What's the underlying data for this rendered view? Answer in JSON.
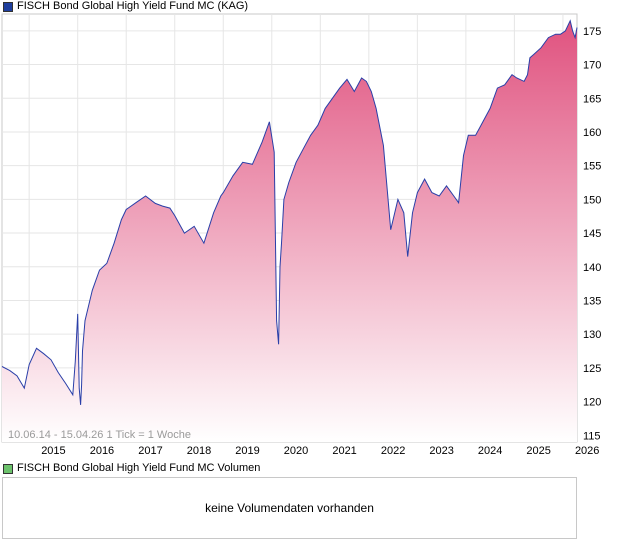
{
  "legend_price": {
    "label": "FISCH Bond Global High Yield Fund MC (KAG)",
    "color": "#1f3f9e"
  },
  "legend_volume": {
    "label": "FISCH Bond Global High Yield Fund MC Volumen",
    "color": "#6cc26c"
  },
  "volume_panel": {
    "message": "keine Volumendaten vorhanden"
  },
  "range_note": "10.06.14 - 15.04.26   1 Tick = 1 Woche",
  "colors": {
    "line": "#2a3fa8",
    "area_top": "#e0527f",
    "area_bottom": "#ffffff",
    "grid": "#e6e6e6"
  },
  "chart_data": {
    "type": "area",
    "x_ticks": [
      "2015",
      "2016",
      "2017",
      "2018",
      "2019",
      "2020",
      "2021",
      "2022",
      "2023",
      "2024",
      "2025",
      "2026"
    ],
    "y_ticks": [
      115,
      120,
      125,
      130,
      135,
      140,
      145,
      150,
      155,
      160,
      165,
      170,
      175
    ],
    "xlim": [
      2014.44,
      2026.29
    ],
    "ylim": [
      114,
      177.5
    ],
    "grid": true,
    "legend": "top-left",
    "x": [
      2014.44,
      2014.6,
      2014.75,
      2014.9,
      2015.0,
      2015.15,
      2015.3,
      2015.45,
      2015.6,
      2015.75,
      2015.9,
      2015.95,
      2016.0,
      2016.03,
      2016.06,
      2016.08,
      2016.1,
      2016.15,
      2016.3,
      2016.45,
      2016.6,
      2016.75,
      2016.9,
      2017.0,
      2017.2,
      2017.4,
      2017.6,
      2017.75,
      2017.9,
      2018.0,
      2018.2,
      2018.4,
      2018.6,
      2018.8,
      2018.95,
      2019.0,
      2019.2,
      2019.4,
      2019.6,
      2019.8,
      2019.95,
      2020.05,
      2020.1,
      2020.14,
      2020.17,
      2020.2,
      2020.25,
      2020.35,
      2020.5,
      2020.65,
      2020.8,
      2020.95,
      2021.1,
      2021.25,
      2021.4,
      2021.55,
      2021.7,
      2021.85,
      2021.95,
      2022.05,
      2022.15,
      2022.3,
      2022.45,
      2022.6,
      2022.72,
      2022.8,
      2022.9,
      2023.0,
      2023.15,
      2023.3,
      2023.45,
      2023.6,
      2023.75,
      2023.85,
      2023.95,
      2024.05,
      2024.2,
      2024.35,
      2024.5,
      2024.65,
      2024.8,
      2024.95,
      2025.05,
      2025.2,
      2025.27,
      2025.32,
      2025.4,
      2025.55,
      2025.7,
      2025.85,
      2025.95,
      2026.05,
      2026.15,
      2026.2,
      2026.25,
      2026.29
    ],
    "values": [
      125.2,
      124.6,
      123.8,
      122.0,
      125.5,
      127.9,
      127.1,
      126.2,
      124.3,
      122.7,
      121.0,
      126.0,
      133.0,
      122.0,
      119.5,
      122.5,
      127.5,
      132.0,
      136.5,
      139.5,
      140.5,
      143.5,
      147.0,
      148.5,
      149.5,
      150.5,
      149.4,
      149.0,
      148.7,
      147.6,
      145.0,
      146.0,
      143.5,
      148.0,
      150.5,
      151.0,
      153.5,
      155.5,
      155.2,
      158.5,
      161.5,
      157.0,
      132.0,
      128.5,
      140.0,
      143.5,
      150.0,
      152.5,
      155.5,
      157.5,
      159.5,
      161.0,
      163.5,
      165.0,
      166.5,
      167.8,
      166.0,
      168.0,
      167.5,
      166.0,
      163.5,
      158.0,
      145.5,
      150.0,
      148.0,
      141.5,
      148.0,
      151.0,
      153.0,
      151.0,
      150.5,
      152.0,
      150.5,
      149.5,
      156.5,
      159.5,
      159.5,
      161.5,
      163.5,
      166.5,
      167.0,
      168.5,
      168.0,
      167.5,
      168.5,
      171.0,
      171.5,
      172.5,
      174.0,
      174.5,
      174.5,
      175.0,
      176.5,
      175.0,
      174.0,
      175.5
    ]
  }
}
